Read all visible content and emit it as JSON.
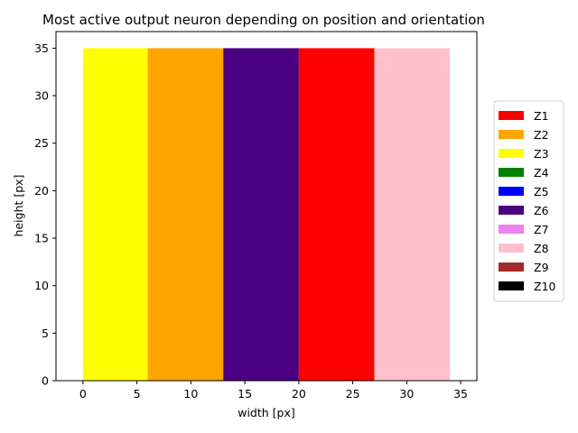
{
  "chart_data": {
    "type": "bar",
    "title": "Most active output neuron depending on position and orientation",
    "xlabel": "width [px]",
    "ylabel": "height [px]",
    "xlim": [
      -2.5,
      36.5
    ],
    "ylim": [
      0,
      36.75
    ],
    "xticks": [
      0,
      5,
      10,
      15,
      20,
      25,
      30,
      35
    ],
    "yticks": [
      0,
      5,
      10,
      15,
      20,
      25,
      30,
      35
    ],
    "grid": false,
    "legend_position": "center-right outside",
    "regions": [
      {
        "class": "Z3",
        "x_start": 0,
        "x_end": 6,
        "y_start": 0,
        "y_end": 35,
        "color": "#ffff00"
      },
      {
        "class": "Z2",
        "x_start": 6,
        "x_end": 13,
        "y_start": 0,
        "y_end": 35,
        "color": "#ffa500"
      },
      {
        "class": "Z6",
        "x_start": 13,
        "x_end": 20,
        "y_start": 0,
        "y_end": 35,
        "color": "#4b0082"
      },
      {
        "class": "Z1",
        "x_start": 20,
        "x_end": 27,
        "y_start": 0,
        "y_end": 35,
        "color": "#ff0000"
      },
      {
        "class": "Z8",
        "x_start": 27,
        "x_end": 34,
        "y_start": 0,
        "y_end": 35,
        "color": "#ffc0cb"
      }
    ],
    "legend": [
      {
        "label": "Z1",
        "color": "#ff0000"
      },
      {
        "label": "Z2",
        "color": "#ffa500"
      },
      {
        "label": "Z3",
        "color": "#ffff00"
      },
      {
        "label": "Z4",
        "color": "#008000"
      },
      {
        "label": "Z5",
        "color": "#0000ff"
      },
      {
        "label": "Z6",
        "color": "#4b0082"
      },
      {
        "label": "Z7",
        "color": "#ee82ee"
      },
      {
        "label": "Z8",
        "color": "#ffc0cb"
      },
      {
        "label": "Z9",
        "color": "#a52a2a"
      },
      {
        "label": "Z10",
        "color": "#000000"
      }
    ]
  }
}
